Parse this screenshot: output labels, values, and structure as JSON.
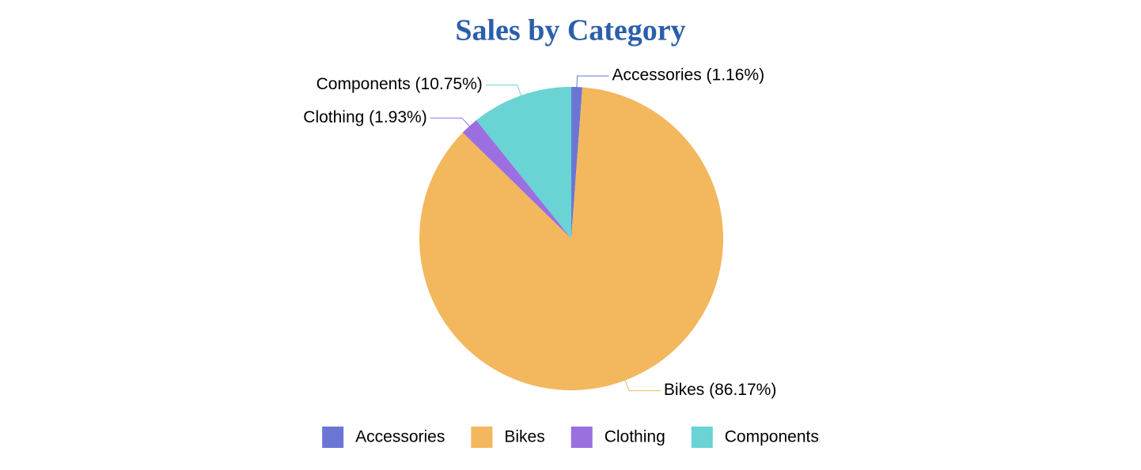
{
  "chart_data": {
    "type": "pie",
    "title": "Sales by Category",
    "categories": [
      "Accessories",
      "Bikes",
      "Clothing",
      "Components"
    ],
    "values": [
      1.16,
      86.17,
      1.93,
      10.75
    ],
    "value_labels": [
      "Accessories (1.16%)",
      "Bikes (86.17%)",
      "Clothing (1.93%)",
      "Components (10.75%)"
    ],
    "colors": [
      "#6b76d4",
      "#f3b75e",
      "#9c6fe0",
      "#6ad3d3"
    ],
    "legend": "bottom"
  }
}
